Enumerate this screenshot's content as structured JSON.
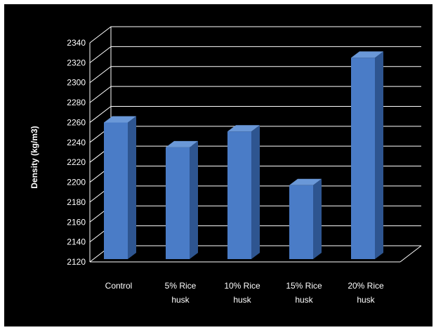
{
  "chart_data": {
    "type": "bar",
    "title": "",
    "xlabel": "",
    "ylabel": "Density (kg/m3)",
    "categories": [
      [
        "Control"
      ],
      [
        "5% Rice",
        "husk"
      ],
      [
        "10% Rice",
        "husk"
      ],
      [
        "15% Rice",
        "husk"
      ],
      [
        "20% Rice",
        "husk"
      ]
    ],
    "values": [
      2260,
      2235,
      2251,
      2197,
      2325
    ],
    "ylim": [
      2120,
      2340
    ],
    "yticks": [
      2120,
      2140,
      2160,
      2180,
      2200,
      2220,
      2240,
      2260,
      2280,
      2300,
      2320,
      2340
    ],
    "grid": true,
    "style": "3d-column",
    "colors": {
      "background": "#000000",
      "bar_front": "#4a7cc7",
      "bar_side": "#2e5590",
      "bar_top": "#6a98d8",
      "grid": "#ffffff",
      "text": "#ffffff"
    }
  }
}
